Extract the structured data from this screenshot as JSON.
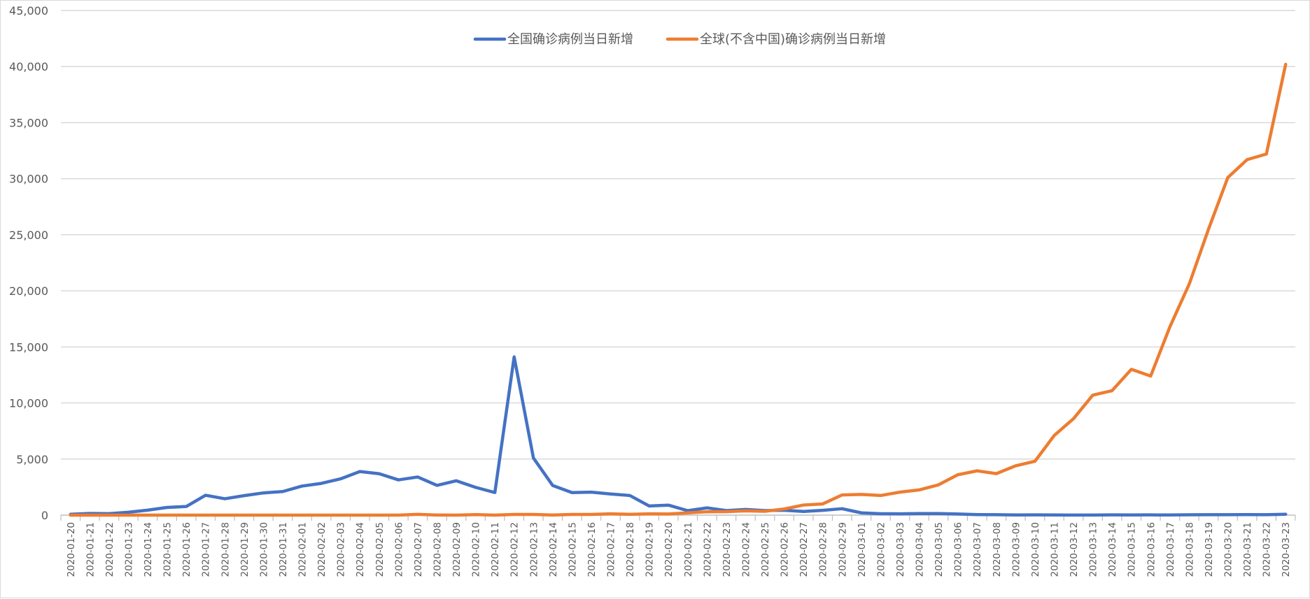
{
  "chart_data": {
    "type": "line",
    "title": "",
    "xlabel": "",
    "ylabel": "",
    "ylim": [
      0,
      45000
    ],
    "y_ticks": [
      0,
      5000,
      10000,
      15000,
      20000,
      25000,
      30000,
      35000,
      40000,
      45000
    ],
    "y_tick_labels": [
      "0",
      "5,000",
      "10,000",
      "15,000",
      "20,000",
      "25,000",
      "30,000",
      "35,000",
      "40,000",
      "45,000"
    ],
    "grid": true,
    "legend_position": "top-center",
    "x_tick_rotation": "vertical",
    "categories": [
      "2020-01-20",
      "2020-01-21",
      "2020-01-22",
      "2020-01-23",
      "2020-01-24",
      "2020-01-25",
      "2020-01-26",
      "2020-01-27",
      "2020-01-28",
      "2020-01-29",
      "2020-01-30",
      "2020-01-31",
      "2020-02-01",
      "2020-02-02",
      "2020-02-03",
      "2020-02-04",
      "2020-02-05",
      "2020-02-06",
      "2020-02-07",
      "2020-02-08",
      "2020-02-09",
      "2020-02-10",
      "2020-02-11",
      "2020-02-12",
      "2020-02-13",
      "2020-02-14",
      "2020-02-15",
      "2020-02-16",
      "2020-02-17",
      "2020-02-18",
      "2020-02-19",
      "2020-02-20",
      "2020-02-21",
      "2020-02-22",
      "2020-02-23",
      "2020-02-24",
      "2020-02-25",
      "2020-02-26",
      "2020-02-27",
      "2020-02-28",
      "2020-02-29",
      "2020-03-01",
      "2020-03-02",
      "2020-03-03",
      "2020-03-04",
      "2020-03-05",
      "2020-03-06",
      "2020-03-07",
      "2020-03-08",
      "2020-03-09",
      "2020-03-10",
      "2020-03-11",
      "2020-03-12",
      "2020-03-13",
      "2020-03-14",
      "2020-03-15",
      "2020-03-16",
      "2020-03-17",
      "2020-03-18",
      "2020-03-19",
      "2020-03-20",
      "2020-03-21",
      "2020-03-22",
      "2020-03-23"
    ],
    "series": [
      {
        "name": "全国确诊病例当日新增",
        "color": "#4472C4",
        "values": [
          77,
          149,
          131,
          259,
          444,
          688,
          769,
          1771,
          1459,
          1737,
          1982,
          2102,
          2590,
          2829,
          3235,
          3887,
          3694,
          3143,
          3399,
          2656,
          3062,
          2478,
          2015,
          14108,
          5090,
          2641,
          2008,
          2048,
          1886,
          1749,
          820,
          891,
          397,
          648,
          409,
          508,
          406,
          433,
          327,
          427,
          573,
          202,
          125,
          119,
          139,
          143,
          99,
          44,
          40,
          19,
          24,
          15,
          8,
          11,
          20,
          16,
          21,
          13,
          34,
          39,
          41,
          46,
          39,
          78
        ]
      },
      {
        "name": "全球(不含中国)确诊病例当日新增",
        "color": "#ED7D31",
        "values": [
          0,
          0,
          0,
          0,
          0,
          0,
          0,
          0,
          0,
          0,
          0,
          0,
          0,
          0,
          0,
          0,
          0,
          0,
          70,
          10,
          0,
          50,
          0,
          60,
          60,
          10,
          60,
          60,
          120,
          70,
          120,
          100,
          200,
          300,
          310,
          380,
          340,
          550,
          900,
          1000,
          1800,
          1850,
          1750,
          2050,
          2250,
          2700,
          3600,
          3950,
          3700,
          4400,
          4800,
          7100,
          8600,
          10700,
          11100,
          13000,
          12400,
          16800,
          20600,
          25500,
          30100,
          31700,
          32200,
          40200
        ]
      }
    ]
  }
}
